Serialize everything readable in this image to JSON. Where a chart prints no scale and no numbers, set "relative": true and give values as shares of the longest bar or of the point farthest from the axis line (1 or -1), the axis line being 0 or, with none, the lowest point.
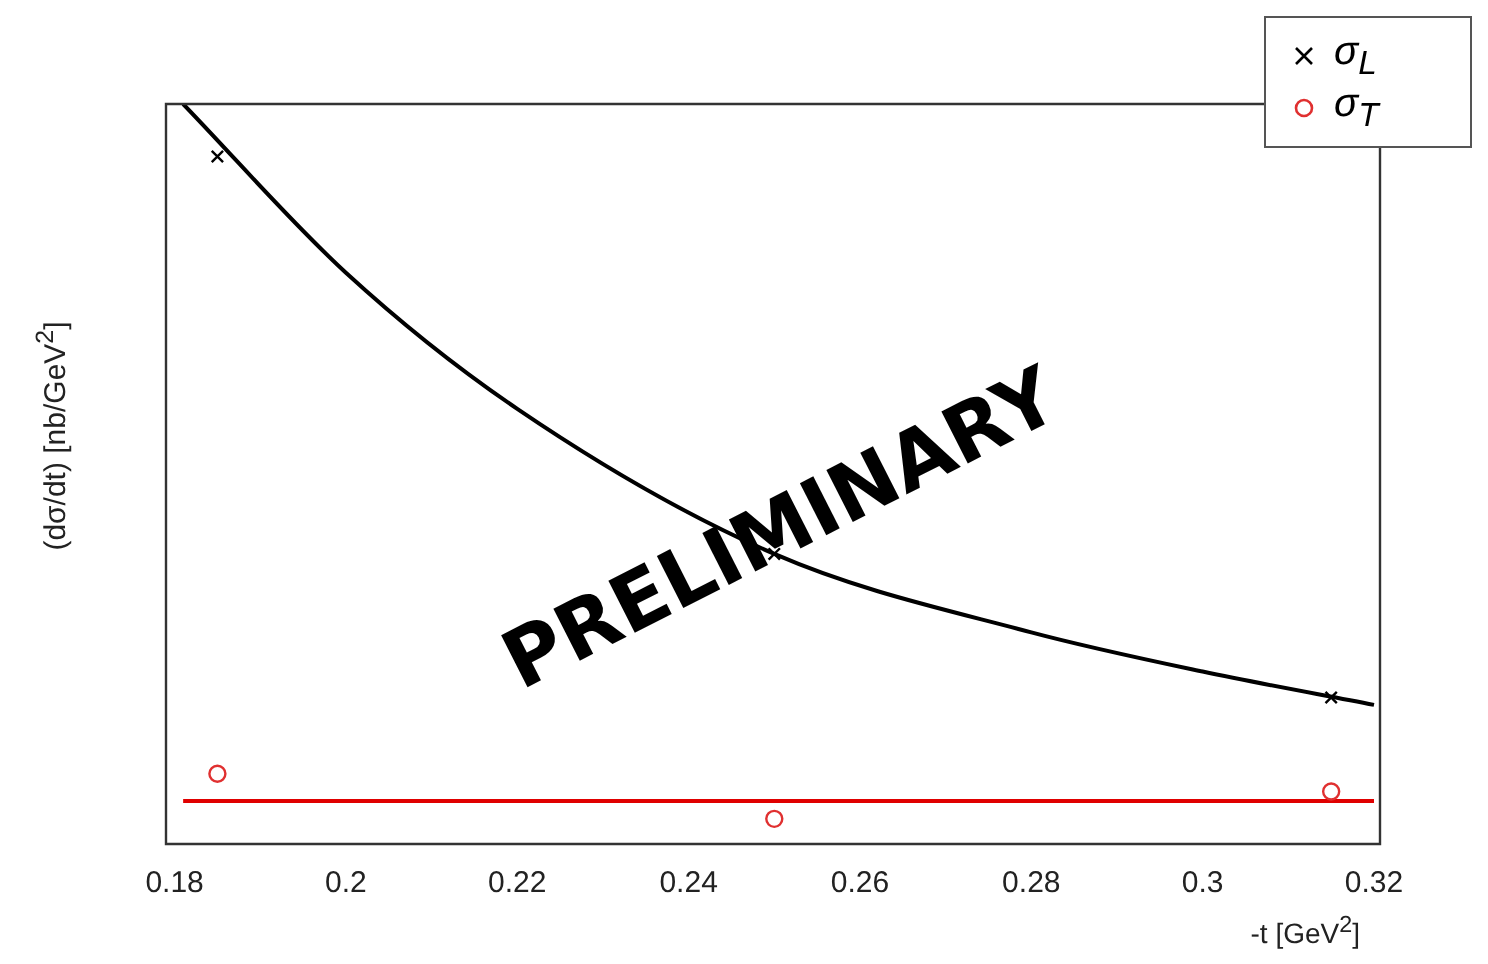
{
  "chart_data": {
    "type": "scatter",
    "relative": true,
    "xlabel": "-t [GeV$^{2}$]",
    "ylabel": "(dσ/dt) [nb/GeV$^{2}$]",
    "xlim": [
      0.179,
      0.3207
    ],
    "xticks": [
      0.18,
      0.2,
      0.22,
      0.24,
      0.26,
      0.28,
      0.3,
      0.32
    ],
    "grid": false,
    "legend": "top right",
    "annotations": [
      "PRELIMINARY"
    ],
    "series": [
      {
        "name": "σ$_{L}$",
        "type": "scatter",
        "marker": "cross",
        "color": "#000000",
        "x": [
          0.185,
          0.25,
          0.315
        ],
        "values": [
          0.929,
          0.392,
          0.198
        ]
      },
      {
        "name": "σ$_{T}$",
        "type": "scatter",
        "marker": "circle",
        "color": "#e03030",
        "x": [
          0.185,
          0.25,
          0.315
        ],
        "values": [
          0.095,
          0.034,
          0.071
        ]
      },
      {
        "type": "line",
        "marker": "none",
        "color": "#000000",
        "x": [
          0.181,
          0.2,
          0.22,
          0.25,
          0.28,
          0.3,
          0.32
        ],
        "values": [
          1.0,
          0.772,
          0.588,
          0.392,
          0.286,
          0.233,
          0.188
        ]
      },
      {
        "type": "line",
        "marker": "none",
        "color": "#e00000",
        "x": [
          0.181,
          0.32
        ],
        "values": [
          0.058,
          0.058
        ]
      }
    ]
  }
}
